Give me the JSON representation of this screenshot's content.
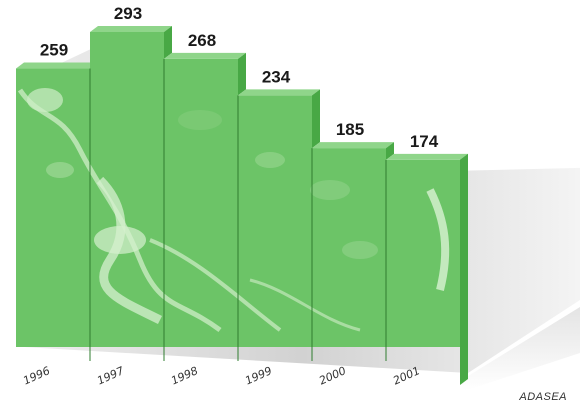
{
  "chart_data": {
    "type": "bar",
    "categories": [
      "1996",
      "1997",
      "1998",
      "1999",
      "2000",
      "2001"
    ],
    "values": [
      259,
      293,
      268,
      234,
      185,
      174
    ],
    "title": "",
    "xlabel": "",
    "ylabel": "",
    "ylim": [
      0,
      300
    ],
    "grid": false,
    "legend": "none",
    "source": "ADASEA",
    "colors": {
      "bar": "#6fc66a",
      "bar_light": "#bfe6b4",
      "bar_side": "#48a845",
      "bar_top": "#8fd58a",
      "shadow": "#d9d9d9",
      "divider": "#2f7d2f"
    }
  }
}
